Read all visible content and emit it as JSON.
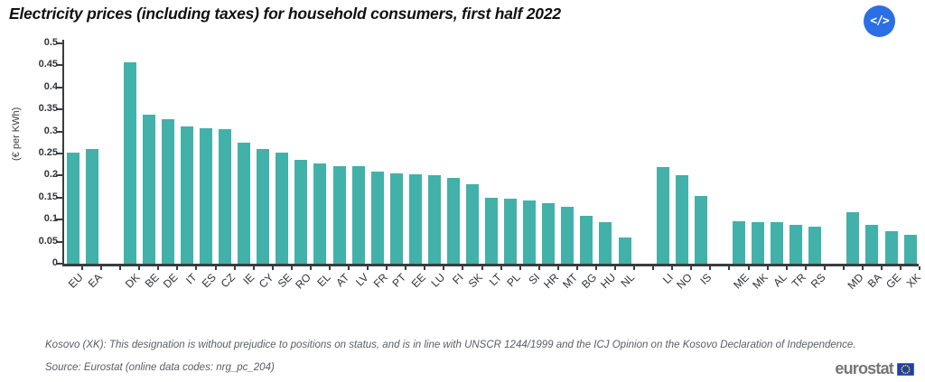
{
  "header": {
    "embed_icon_label": "</>"
  },
  "chart_data": {
    "type": "bar",
    "title": "Electricity prices (including taxes) for household consumers, first half 2022",
    "xlabel": "",
    "ylabel": "(€ per KWh)",
    "ylim": [
      0,
      0.5
    ],
    "ytick_step": 0.05,
    "ytick_labels": [
      "0",
      "0.05",
      "0.1",
      "0.15",
      "0.2",
      "0.25",
      "0.3",
      "0.35",
      "0.4",
      "0.45",
      "0.5"
    ],
    "grid": false,
    "legend": false,
    "bar_color": "#42b1aa",
    "categories": [
      "EU",
      "EA",
      "DK",
      "BE",
      "DE",
      "IT",
      "ES",
      "CZ",
      "IE",
      "CY",
      "SE",
      "RO",
      "EL",
      "AT",
      "LV",
      "FR",
      "PT",
      "EE",
      "LU",
      "FI",
      "SK",
      "LT",
      "PL",
      "SI",
      "HR",
      "MT",
      "BG",
      "HU",
      "NL",
      "LI",
      "NO",
      "IS",
      "ME",
      "MK",
      "AL",
      "TR",
      "RS",
      "MD",
      "BA",
      "GE",
      "XK"
    ],
    "values": [
      0.253,
      0.26,
      0.456,
      0.338,
      0.328,
      0.312,
      0.307,
      0.306,
      0.275,
      0.26,
      0.253,
      0.235,
      0.228,
      0.222,
      0.221,
      0.209,
      0.205,
      0.203,
      0.2,
      0.194,
      0.18,
      0.149,
      0.147,
      0.144,
      0.137,
      0.13,
      0.109,
      0.095,
      0.06,
      0.22,
      0.2,
      0.153,
      0.096,
      0.095,
      0.095,
      0.088,
      0.083,
      0.117,
      0.089,
      0.074,
      0.066
    ],
    "gap_after": [
      "EA",
      "NL",
      "IS",
      "RS"
    ]
  },
  "footer": {
    "kosovo_note": "Kosovo (XK): This designation is without prejudice to positions on status, and is in line with UNSCR 1244/1999 and the ICJ Opinion on the Kosovo Declaration of Independence.",
    "source": "Source: Eurostat (online data codes: nrg_pc_204)",
    "logo_text": "eurostat"
  }
}
